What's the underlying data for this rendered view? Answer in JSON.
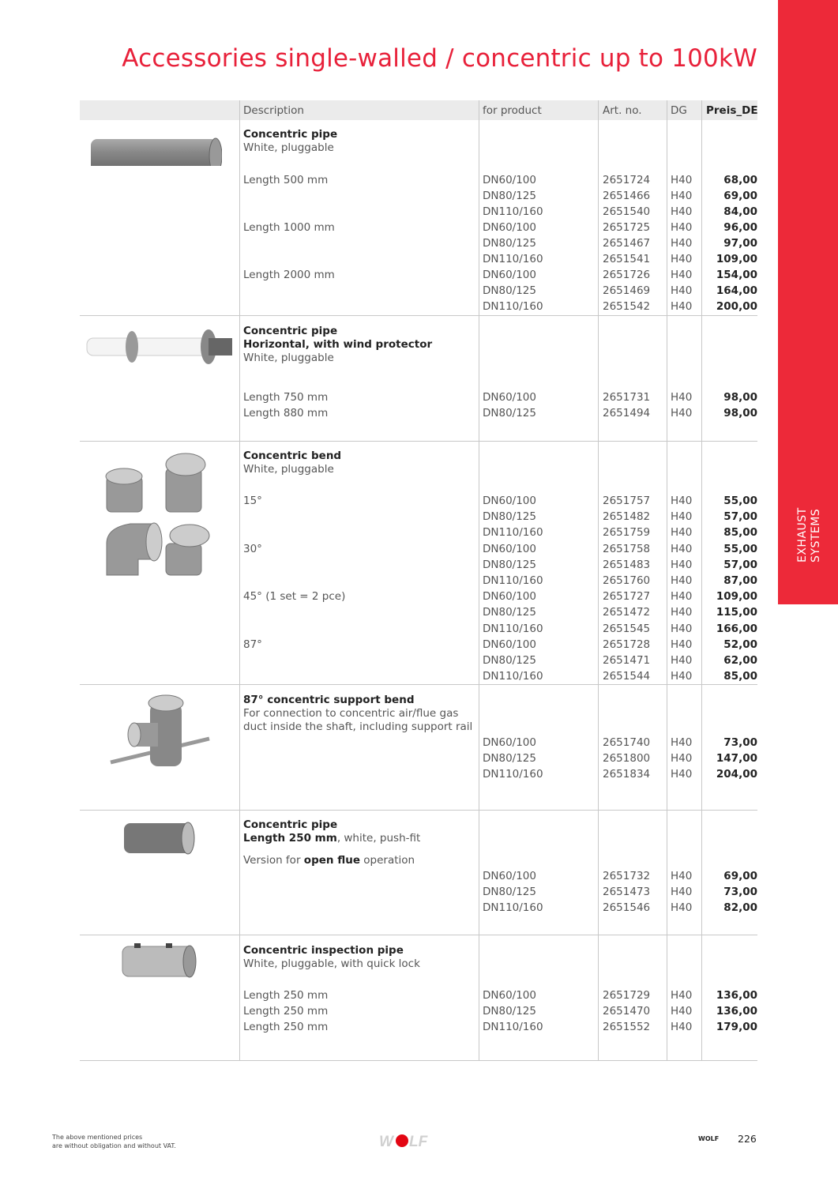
{
  "title": "Accessories single-walled / concentric up to 100kW",
  "sidebar": {
    "line1": "EXHAUST",
    "line2": "SYSTEMS",
    "color": "#ed2939"
  },
  "header": {
    "description": "Description",
    "for_product": "for product",
    "art_no": "Art. no.",
    "dg": "DG",
    "price": "Preis_DE"
  },
  "sections": [
    {
      "image": "concentric-pipe-image",
      "lines": [
        {
          "text": "Concentric pipe",
          "bold": true
        },
        {
          "text": "White, pluggable"
        }
      ],
      "rows": [
        {
          "desc": "Length 500 mm",
          "product": "DN60/100",
          "art": "2651724",
          "dg": "H40",
          "price": "68,00"
        },
        {
          "desc": "",
          "product": "DN80/125",
          "art": "2651466",
          "dg": "H40",
          "price": "69,00"
        },
        {
          "desc": "",
          "product": "DN110/160",
          "art": "2651540",
          "dg": "H40",
          "price": "84,00"
        },
        {
          "desc": "Length 1000 mm",
          "product": "DN60/100",
          "art": "2651725",
          "dg": "H40",
          "price": "96,00"
        },
        {
          "desc": "",
          "product": "DN80/125",
          "art": "2651467",
          "dg": "H40",
          "price": "97,00"
        },
        {
          "desc": "",
          "product": "DN110/160",
          "art": "2651541",
          "dg": "H40",
          "price": "109,00"
        },
        {
          "desc": "Length 2000 mm",
          "product": "DN60/100",
          "art": "2651726",
          "dg": "H40",
          "price": "154,00"
        },
        {
          "desc": "",
          "product": "DN80/125",
          "art": "2651469",
          "dg": "H40",
          "price": "164,00"
        },
        {
          "desc": "",
          "product": "DN110/160",
          "art": "2651542",
          "dg": "H40",
          "price": "200,00"
        }
      ]
    },
    {
      "image": "horizontal-pipe-wind-protector-image",
      "lines": [
        {
          "text": "Concentric pipe",
          "bold": true
        },
        {
          "text": "Horizontal, with wind protector",
          "bold": true
        },
        {
          "text": "White, pluggable"
        }
      ],
      "rows": [
        {
          "desc": "Length 750 mm",
          "product": "DN60/100",
          "art": "2651731",
          "dg": "H40",
          "price": "98,00"
        },
        {
          "desc": "Length 880 mm",
          "product": "DN80/125",
          "art": "2651494",
          "dg": "H40",
          "price": "98,00"
        }
      ]
    },
    {
      "image": "concentric-bends-image",
      "lines": [
        {
          "text": "Concentric bend",
          "bold": true
        },
        {
          "text": "White, pluggable"
        }
      ],
      "rows": [
        {
          "desc": "15°",
          "product": "DN60/100",
          "art": "2651757",
          "dg": "H40",
          "price": "55,00"
        },
        {
          "desc": "",
          "product": "DN80/125",
          "art": "2651482",
          "dg": "H40",
          "price": "57,00"
        },
        {
          "desc": "",
          "product": "DN110/160",
          "art": "2651759",
          "dg": "H40",
          "price": "85,00"
        },
        {
          "desc": "30°",
          "product": "DN60/100",
          "art": "2651758",
          "dg": "H40",
          "price": "55,00"
        },
        {
          "desc": "",
          "product": "DN80/125",
          "art": "2651483",
          "dg": "H40",
          "price": "57,00"
        },
        {
          "desc": "",
          "product": "DN110/160",
          "art": "2651760",
          "dg": "H40",
          "price": "87,00"
        },
        {
          "desc": "45° (1 set = 2 pce)",
          "product": "DN60/100",
          "art": "2651727",
          "dg": "H40",
          "price": "109,00"
        },
        {
          "desc": "",
          "product": "DN80/125",
          "art": "2651472",
          "dg": "H40",
          "price": "115,00"
        },
        {
          "desc": "",
          "product": "DN110/160",
          "art": "2651545",
          "dg": "H40",
          "price": "166,00"
        },
        {
          "desc": "87°",
          "product": "DN60/100",
          "art": "2651728",
          "dg": "H40",
          "price": "52,00"
        },
        {
          "desc": "",
          "product": "DN80/125",
          "art": "2651471",
          "dg": "H40",
          "price": "62,00"
        },
        {
          "desc": "",
          "product": "DN110/160",
          "art": "2651544",
          "dg": "H40",
          "price": "85,00"
        }
      ]
    },
    {
      "image": "support-bend-image",
      "lines": [
        {
          "text": "87° concentric support bend",
          "bold": true
        },
        {
          "text": "For connection to concentric air/flue gas"
        },
        {
          "text": "duct inside the shaft, including support rail"
        }
      ],
      "rows": [
        {
          "desc": "",
          "product": "DN60/100",
          "art": "2651740",
          "dg": "H40",
          "price": "73,00"
        },
        {
          "desc": "",
          "product": "DN80/125",
          "art": "2651800",
          "dg": "H40",
          "price": "147,00"
        },
        {
          "desc": "",
          "product": "DN110/160",
          "art": "2651834",
          "dg": "H40",
          "price": "204,00"
        }
      ]
    },
    {
      "image": "short-pipe-image",
      "lines": [
        {
          "text": "Concentric pipe",
          "bold": true
        },
        {
          "parts": [
            {
              "text": "Length 250 mm",
              "bold": true
            },
            {
              "text": ", white, push-fit"
            }
          ]
        },
        {
          "parts": [
            {
              "text": "Version for "
            },
            {
              "text": "open flue",
              "bold": true
            },
            {
              "text": " operation"
            }
          ]
        }
      ],
      "rows": [
        {
          "desc": "",
          "product": "DN60/100",
          "art": "2651732",
          "dg": "H40",
          "price": "69,00"
        },
        {
          "desc": "",
          "product": "DN80/125",
          "art": "2651473",
          "dg": "H40",
          "price": "73,00"
        },
        {
          "desc": "",
          "product": "DN110/160",
          "art": "2651546",
          "dg": "H40",
          "price": "82,00"
        }
      ]
    },
    {
      "image": "inspection-pipe-image",
      "lines": [
        {
          "text": "Concentric inspection pipe",
          "bold": true
        },
        {
          "text": "White, pluggable, with quick lock"
        }
      ],
      "rows": [
        {
          "desc": "Length 250 mm",
          "product": "DN60/100",
          "art": "2651729",
          "dg": "H40",
          "price": "136,00"
        },
        {
          "desc": "Length 250 mm",
          "product": "DN80/125",
          "art": "2651470",
          "dg": "H40",
          "price": "136,00"
        },
        {
          "desc": "Length 250 mm",
          "product": "DN110/160",
          "art": "2651552",
          "dg": "H40",
          "price": "179,00"
        }
      ]
    }
  ],
  "footer": {
    "note_line1": "The above mentioned prices",
    "note_line2": "are without obligation and without VAT.",
    "logo": "WOLF",
    "brand": "WOLF",
    "page": "226"
  }
}
